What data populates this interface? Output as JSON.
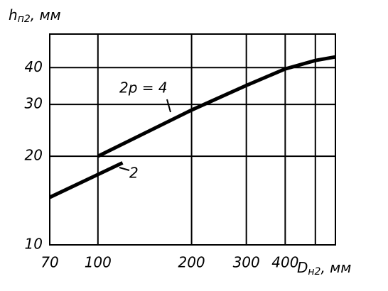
{
  "chart_data": {
    "type": "line",
    "log_x": true,
    "log_y": true,
    "grid": true,
    "y_label": {
      "main": "h",
      "sub": "п2",
      "unit": ", мм"
    },
    "x_label": {
      "main": "D",
      "sub": "н2",
      "unit": ", мм"
    },
    "xlim": [
      70,
      580
    ],
    "ylim": [
      10,
      52
    ],
    "xticks": [
      70,
      100,
      200,
      300,
      400,
      {
        "value": 500,
        "label": null
      }
    ],
    "yticks": [
      10,
      20,
      30,
      40
    ],
    "series": [
      {
        "name": "2p = 4",
        "color": "#000000",
        "x": [
          100,
          200,
          300,
          400,
          500,
          580
        ],
        "values": [
          20,
          28.7,
          34.8,
          39.6,
          42.3,
          43.5
        ]
      },
      {
        "name": "2",
        "color": "#000000",
        "x": [
          70,
          120
        ],
        "values": [
          14.5,
          19
        ]
      }
    ]
  }
}
